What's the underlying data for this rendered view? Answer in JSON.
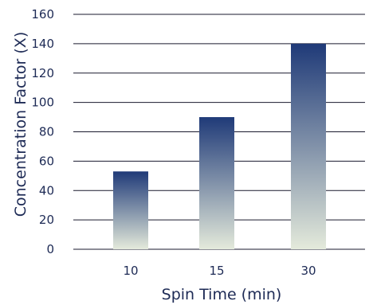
{
  "chart_data": {
    "type": "bar",
    "title": "",
    "xlabel": "Spin Time (min)",
    "ylabel": "Concentration Factor (X)",
    "categories": [
      "10",
      "15",
      "30"
    ],
    "values": [
      53,
      90,
      140
    ],
    "ylim": [
      0,
      160
    ],
    "yticks": [
      0,
      20,
      40,
      60,
      80,
      100,
      120,
      140,
      160
    ],
    "grid": true,
    "colors": {
      "bar_top": "#1f3a78",
      "bar_bottom": "#e4eadb",
      "text": "#1d2a55",
      "grid": "#1a1a2e"
    }
  }
}
